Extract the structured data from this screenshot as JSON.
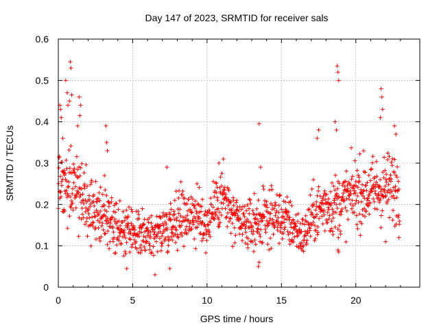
{
  "chart_data": {
    "type": "scatter",
    "title": "Day 147 of 2023, SRMTID for receiver sals",
    "xlabel": "GPS time / hours",
    "ylabel": "SRMTID / TECUs",
    "xlim": [
      0,
      24.3
    ],
    "ylim": [
      0,
      0.6
    ],
    "x_ticks": [
      0,
      5,
      10,
      15,
      20
    ],
    "y_ticks": [
      0,
      0.1,
      0.2,
      0.3,
      0.4,
      0.5,
      0.6
    ],
    "x_tick_labels": [
      "0",
      "5",
      "10",
      "15",
      "20"
    ],
    "y_tick_labels": [
      "0",
      "0.1",
      "0.2",
      "0.3",
      "0.4",
      "0.5",
      "0.6"
    ],
    "grid": true,
    "marker": "plus",
    "series_color": "#ff0000",
    "series": [
      {
        "name": "SRMTID",
        "trend_x": [
          0,
          0.5,
          1,
          1.5,
          2,
          3,
          4,
          5,
          6,
          7,
          8,
          9,
          10,
          10.5,
          11,
          12,
          13,
          14,
          15,
          16,
          16.5,
          17,
          18,
          19,
          20,
          21,
          22,
          23
        ],
        "trend_y": [
          0.26,
          0.25,
          0.24,
          0.22,
          0.2,
          0.17,
          0.14,
          0.125,
          0.125,
          0.14,
          0.17,
          0.18,
          0.15,
          0.2,
          0.22,
          0.15,
          0.15,
          0.17,
          0.17,
          0.14,
          0.12,
          0.17,
          0.2,
          0.2,
          0.23,
          0.23,
          0.24,
          0.24
        ],
        "scatter_spread": 0.045,
        "outliers": [
          {
            "x": 0.1,
            "y": 0.44
          },
          {
            "x": 0.15,
            "y": 0.43
          },
          {
            "x": 0.2,
            "y": 0.41
          },
          {
            "x": 0.3,
            "y": 0.36
          },
          {
            "x": 0.5,
            "y": 0.5
          },
          {
            "x": 0.6,
            "y": 0.47
          },
          {
            "x": 0.65,
            "y": 0.44
          },
          {
            "x": 0.8,
            "y": 0.545
          },
          {
            "x": 0.85,
            "y": 0.53
          },
          {
            "x": 0.9,
            "y": 0.465
          },
          {
            "x": 0.75,
            "y": 0.45
          },
          {
            "x": 1.4,
            "y": 0.46
          },
          {
            "x": 1.5,
            "y": 0.44
          },
          {
            "x": 1.45,
            "y": 0.415
          },
          {
            "x": 1.3,
            "y": 0.39
          },
          {
            "x": 3.2,
            "y": 0.39
          },
          {
            "x": 3.25,
            "y": 0.35
          },
          {
            "x": 3.3,
            "y": 0.33
          },
          {
            "x": 3.1,
            "y": 0.27
          },
          {
            "x": 7.3,
            "y": 0.29
          },
          {
            "x": 10.8,
            "y": 0.3
          },
          {
            "x": 11.1,
            "y": 0.31
          },
          {
            "x": 13.5,
            "y": 0.395
          },
          {
            "x": 13.6,
            "y": 0.29
          },
          {
            "x": 18.75,
            "y": 0.535
          },
          {
            "x": 18.8,
            "y": 0.52
          },
          {
            "x": 18.85,
            "y": 0.5
          },
          {
            "x": 18.7,
            "y": 0.38
          },
          {
            "x": 18.6,
            "y": 0.4
          },
          {
            "x": 17.5,
            "y": 0.38
          },
          {
            "x": 17.4,
            "y": 0.36
          },
          {
            "x": 21.7,
            "y": 0.48
          },
          {
            "x": 21.75,
            "y": 0.46
          },
          {
            "x": 21.8,
            "y": 0.43
          },
          {
            "x": 21.65,
            "y": 0.41
          },
          {
            "x": 22.6,
            "y": 0.39
          },
          {
            "x": 22.7,
            "y": 0.37
          },
          {
            "x": 18.8,
            "y": 0.09
          },
          {
            "x": 18.85,
            "y": 0.085
          },
          {
            "x": 13.45,
            "y": 0.05
          },
          {
            "x": 13.5,
            "y": 0.06
          },
          {
            "x": 6.5,
            "y": 0.03
          },
          {
            "x": 7.5,
            "y": 0.045
          },
          {
            "x": 4.6,
            "y": 0.045
          },
          {
            "x": 22.0,
            "y": 0.11
          },
          {
            "x": 22.9,
            "y": 0.12
          }
        ]
      }
    ]
  }
}
